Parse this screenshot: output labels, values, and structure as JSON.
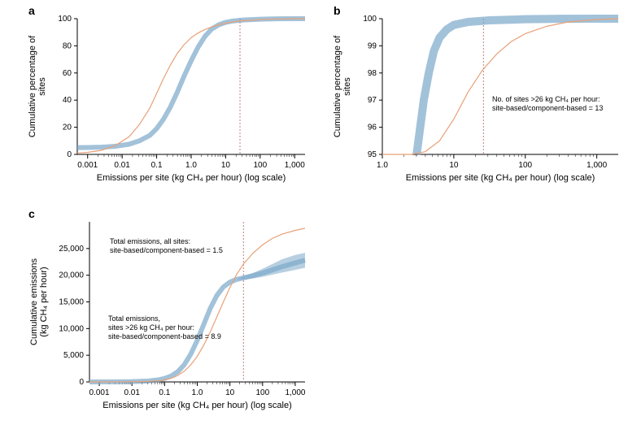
{
  "panels": {
    "a": {
      "label": "a",
      "ylabel": "Cumulative percentage of\nsites",
      "xlabel": "Emissions per site (kg CH₄ per hour) (log scale)",
      "xlim_log": [
        -3.3,
        3.3
      ],
      "ylim": [
        0,
        100
      ],
      "yticks": [
        0,
        20,
        40,
        60,
        80,
        100
      ],
      "xticks_log": [
        -3,
        -2,
        -1,
        0,
        1,
        2,
        3
      ],
      "xtick_labels": [
        "0.001",
        "0.01",
        "0.1",
        "1.0",
        "10",
        "100",
        "1,000"
      ],
      "vline_log": 1.415,
      "colors": {
        "blue": "#7ba8c9",
        "orange": "#e8a178",
        "vline": "#c08080",
        "axis": "#000000"
      },
      "blue_band_width": 6,
      "blue_curve": [
        [
          -3.3,
          5
        ],
        [
          -3.0,
          5.1
        ],
        [
          -2.6,
          5.3
        ],
        [
          -2.2,
          6.0
        ],
        [
          -1.8,
          7.5
        ],
        [
          -1.5,
          10
        ],
        [
          -1.2,
          14
        ],
        [
          -1.0,
          19
        ],
        [
          -0.8,
          26
        ],
        [
          -0.6,
          35
        ],
        [
          -0.4,
          46
        ],
        [
          -0.2,
          58
        ],
        [
          0.0,
          69
        ],
        [
          0.2,
          79
        ],
        [
          0.4,
          87
        ],
        [
          0.6,
          92.5
        ],
        [
          0.8,
          95.5
        ],
        [
          1.0,
          97.3
        ],
        [
          1.2,
          98.3
        ],
        [
          1.5,
          99
        ],
        [
          2.0,
          99.6
        ],
        [
          2.5,
          99.9
        ],
        [
          3.0,
          100
        ],
        [
          3.3,
          100
        ]
      ],
      "orange_curve": [
        [
          -3.3,
          1
        ],
        [
          -3.0,
          1.5
        ],
        [
          -2.6,
          3
        ],
        [
          -2.2,
          6.5
        ],
        [
          -1.8,
          13
        ],
        [
          -1.5,
          22
        ],
        [
          -1.2,
          34
        ],
        [
          -1.0,
          45
        ],
        [
          -0.8,
          56
        ],
        [
          -0.6,
          66
        ],
        [
          -0.4,
          74.5
        ],
        [
          -0.2,
          81
        ],
        [
          0.0,
          86
        ],
        [
          0.2,
          89.5
        ],
        [
          0.4,
          92
        ],
        [
          0.6,
          94
        ],
        [
          0.8,
          95.5
        ],
        [
          1.0,
          96.7
        ],
        [
          1.2,
          97.6
        ],
        [
          1.5,
          98.5
        ],
        [
          2.0,
          99.3
        ],
        [
          2.5,
          99.8
        ],
        [
          3.0,
          100
        ],
        [
          3.3,
          100
        ]
      ]
    },
    "b": {
      "label": "b",
      "ylabel": "Cumulative percentage of\nsites",
      "xlabel": "Emissions per site (kg CH₄ per hour) (log scale)",
      "xlim_log": [
        0,
        3.3
      ],
      "ylim": [
        95,
        100
      ],
      "yticks": [
        95,
        96,
        97,
        98,
        99,
        100
      ],
      "xticks_log": [
        0,
        1,
        2,
        3
      ],
      "xtick_labels": [
        "1.0",
        "10",
        "100",
        "1,000"
      ],
      "vline_log": 1.415,
      "annotation": "No. of sites >26 kg CH₄ per hour:\nsite-based/component-based = 13",
      "colors": {
        "blue": "#7ba8c9",
        "orange": "#e8a178",
        "vline": "#c08080",
        "axis": "#000000"
      },
      "blue_band_width": 10,
      "blue_curve": [
        [
          0.48,
          95
        ],
        [
          0.52,
          95.8
        ],
        [
          0.58,
          97
        ],
        [
          0.65,
          98
        ],
        [
          0.72,
          98.8
        ],
        [
          0.8,
          99.3
        ],
        [
          0.9,
          99.6
        ],
        [
          1.0,
          99.77
        ],
        [
          1.2,
          99.88
        ],
        [
          1.5,
          99.94
        ],
        [
          2.0,
          99.98
        ],
        [
          2.5,
          99.995
        ],
        [
          3.0,
          100
        ],
        [
          3.3,
          100
        ]
      ],
      "orange_curve": [
        [
          0.0,
          95
        ],
        [
          0.4,
          95
        ],
        [
          0.6,
          95.1
        ],
        [
          0.8,
          95.5
        ],
        [
          1.0,
          96.3
        ],
        [
          1.2,
          97.3
        ],
        [
          1.4,
          98.1
        ],
        [
          1.6,
          98.7
        ],
        [
          1.8,
          99.15
        ],
        [
          2.0,
          99.45
        ],
        [
          2.3,
          99.72
        ],
        [
          2.6,
          99.88
        ],
        [
          3.0,
          99.97
        ],
        [
          3.3,
          100
        ]
      ]
    },
    "c": {
      "label": "c",
      "ylabel": "Cumulative emissions\n(kg CH₄ per hour)",
      "xlabel": "Emissions per site (kg CH₄ per hour) (log scale)",
      "xlim_log": [
        -3.3,
        3.3
      ],
      "ylim": [
        0,
        30000
      ],
      "yticks": [
        0,
        5000,
        10000,
        15000,
        20000,
        25000
      ],
      "ytick_labels": [
        "0",
        "5,000",
        "10,000",
        "15,000",
        "20,000",
        "25,000"
      ],
      "xticks_log": [
        -3,
        -2,
        -1,
        0,
        1,
        2,
        3
      ],
      "xtick_labels": [
        "0.001",
        "0.01",
        "0.1",
        "1.0",
        "10",
        "100",
        "1,000"
      ],
      "vline_log": 1.415,
      "annotation1": "Total emissions, all sites:\nsite-based/component-based = 1.5",
      "annotation2": "Total emissions,\nsites >26 kg CH₄ per hour:\nsite-based/component-based = 8.9",
      "colors": {
        "blue": "#7ba8c9",
        "orange": "#e8a178",
        "vline": "#c08080",
        "axis": "#000000"
      },
      "blue_band_width": 6,
      "blue_curve": [
        [
          -3.3,
          0
        ],
        [
          -2.5,
          20
        ],
        [
          -2.0,
          60
        ],
        [
          -1.5,
          180
        ],
        [
          -1.2,
          380
        ],
        [
          -1.0,
          650
        ],
        [
          -0.8,
          1100
        ],
        [
          -0.6,
          1900
        ],
        [
          -0.4,
          3200
        ],
        [
          -0.2,
          5200
        ],
        [
          0.0,
          7800
        ],
        [
          0.2,
          10800
        ],
        [
          0.4,
          13800
        ],
        [
          0.6,
          16200
        ],
        [
          0.8,
          17800
        ],
        [
          1.0,
          18700
        ],
        [
          1.2,
          19200
        ],
        [
          1.415,
          19500
        ],
        [
          1.7,
          19900
        ],
        [
          2.0,
          20400
        ],
        [
          2.3,
          21000
        ],
        [
          2.6,
          21600
        ],
        [
          3.0,
          22300
        ],
        [
          3.3,
          22800
        ]
      ],
      "blue_upper": [
        [
          1.415,
          19800
        ],
        [
          1.7,
          20400
        ],
        [
          2.0,
          21200
        ],
        [
          2.3,
          22100
        ],
        [
          2.6,
          23000
        ],
        [
          3.0,
          23800
        ],
        [
          3.3,
          24200
        ]
      ],
      "blue_lower": [
        [
          1.415,
          19200
        ],
        [
          1.7,
          19400
        ],
        [
          2.0,
          19700
        ],
        [
          2.3,
          20100
        ],
        [
          2.6,
          20500
        ],
        [
          3.0,
          21000
        ],
        [
          3.3,
          21400
        ]
      ],
      "orange_curve": [
        [
          -3.3,
          0
        ],
        [
          -2.5,
          10
        ],
        [
          -2.0,
          30
        ],
        [
          -1.5,
          90
        ],
        [
          -1.2,
          200
        ],
        [
          -1.0,
          380
        ],
        [
          -0.8,
          680
        ],
        [
          -0.6,
          1200
        ],
        [
          -0.4,
          2000
        ],
        [
          -0.2,
          3200
        ],
        [
          0.0,
          4800
        ],
        [
          0.2,
          6900
        ],
        [
          0.4,
          9400
        ],
        [
          0.6,
          12200
        ],
        [
          0.8,
          15000
        ],
        [
          1.0,
          17700
        ],
        [
          1.2,
          20100
        ],
        [
          1.415,
          22100
        ],
        [
          1.7,
          24100
        ],
        [
          2.0,
          25700
        ],
        [
          2.3,
          26900
        ],
        [
          2.6,
          27700
        ],
        [
          3.0,
          28400
        ],
        [
          3.3,
          28800
        ]
      ]
    }
  }
}
